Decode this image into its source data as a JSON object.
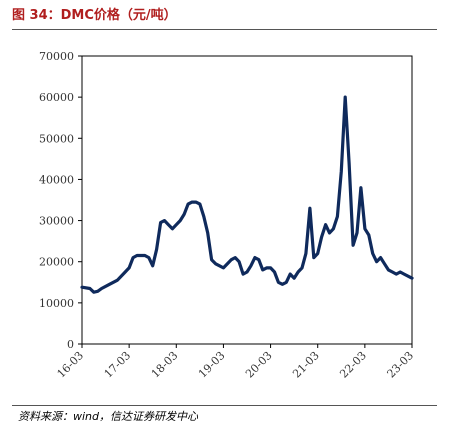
{
  "title": "图 34：DMC价格（元/吨）",
  "source": "资料来源：wind，信达证券研发中心",
  "colors": {
    "title": "#b01e1e",
    "line": "#0f2a5c",
    "axis": "#000000"
  },
  "chart_data": {
    "type": "line",
    "title": "DMC价格（元/吨）",
    "xlabel": "",
    "ylabel": "",
    "x_range": [
      "2016-03",
      "2023-03"
    ],
    "ylim": [
      0,
      70000
    ],
    "y_ticks": [
      0,
      10000,
      20000,
      30000,
      40000,
      50000,
      60000,
      70000
    ],
    "y_tick_labels": [
      "0",
      "10000",
      "20000",
      "30000",
      "40000",
      "50000",
      "60000",
      "70000"
    ],
    "x_ticks": [
      "16-03",
      "17-03",
      "18-03",
      "19-03",
      "20-03",
      "21-03",
      "22-03",
      "23-03"
    ],
    "grid": false,
    "legend": "none",
    "series": [
      {
        "name": "",
        "color": "#0f2a5c",
        "points": [
          [
            "2016-03",
            13800
          ],
          [
            "2016-05",
            13500
          ],
          [
            "2016-06",
            12600
          ],
          [
            "2016-07",
            12800
          ],
          [
            "2016-08",
            13500
          ],
          [
            "2016-10",
            14500
          ],
          [
            "2016-12",
            15500
          ],
          [
            "2017-02",
            17500
          ],
          [
            "2017-03",
            18500
          ],
          [
            "2017-04",
            21000
          ],
          [
            "2017-05",
            21500
          ],
          [
            "2017-06",
            21500
          ],
          [
            "2017-07",
            21500
          ],
          [
            "2017-08",
            21000
          ],
          [
            "2017-09",
            19000
          ],
          [
            "2017-10",
            23000
          ],
          [
            "2017-11",
            29500
          ],
          [
            "2017-12",
            30000
          ],
          [
            "2018-01",
            29000
          ],
          [
            "2018-02",
            28000
          ],
          [
            "2018-03",
            29000
          ],
          [
            "2018-04",
            30000
          ],
          [
            "2018-05",
            31500
          ],
          [
            "2018-06",
            34000
          ],
          [
            "2018-07",
            34500
          ],
          [
            "2018-08",
            34500
          ],
          [
            "2018-09",
            34000
          ],
          [
            "2018-10",
            31000
          ],
          [
            "2018-11",
            27000
          ],
          [
            "2018-12",
            20500
          ],
          [
            "2019-01",
            19500
          ],
          [
            "2019-02",
            19000
          ],
          [
            "2019-03",
            18500
          ],
          [
            "2019-04",
            19500
          ],
          [
            "2019-05",
            20500
          ],
          [
            "2019-06",
            21000
          ],
          [
            "2019-07",
            20000
          ],
          [
            "2019-08",
            17000
          ],
          [
            "2019-09",
            17500
          ],
          [
            "2019-10",
            19000
          ],
          [
            "2019-11",
            21000
          ],
          [
            "2019-12",
            20500
          ],
          [
            "2020-01",
            18000
          ],
          [
            "2020-02",
            18500
          ],
          [
            "2020-03",
            18500
          ],
          [
            "2020-04",
            17500
          ],
          [
            "2020-05",
            15000
          ],
          [
            "2020-06",
            14500
          ],
          [
            "2020-07",
            15000
          ],
          [
            "2020-08",
            17000
          ],
          [
            "2020-09",
            16000
          ],
          [
            "2020-10",
            17500
          ],
          [
            "2020-11",
            18500
          ],
          [
            "2020-12",
            22000
          ],
          [
            "2021-01",
            33000
          ],
          [
            "2021-02",
            21000
          ],
          [
            "2021-03",
            22000
          ],
          [
            "2021-04",
            26000
          ],
          [
            "2021-05",
            29000
          ],
          [
            "2021-06",
            27000
          ],
          [
            "2021-07",
            28000
          ],
          [
            "2021-08",
            31000
          ],
          [
            "2021-09",
            42000
          ],
          [
            "2021-10",
            60000
          ],
          [
            "2021-11",
            44000
          ],
          [
            "2021-12",
            24000
          ],
          [
            "2022-01",
            27000
          ],
          [
            "2022-02",
            38000
          ],
          [
            "2022-03",
            28000
          ],
          [
            "2022-04",
            26500
          ],
          [
            "2022-05",
            22000
          ],
          [
            "2022-06",
            20000
          ],
          [
            "2022-07",
            21000
          ],
          [
            "2022-08",
            19500
          ],
          [
            "2022-09",
            18000
          ],
          [
            "2022-10",
            17500
          ],
          [
            "2022-11",
            17000
          ],
          [
            "2022-12",
            17500
          ],
          [
            "2023-01",
            17000
          ],
          [
            "2023-03",
            16000
          ]
        ]
      }
    ]
  }
}
